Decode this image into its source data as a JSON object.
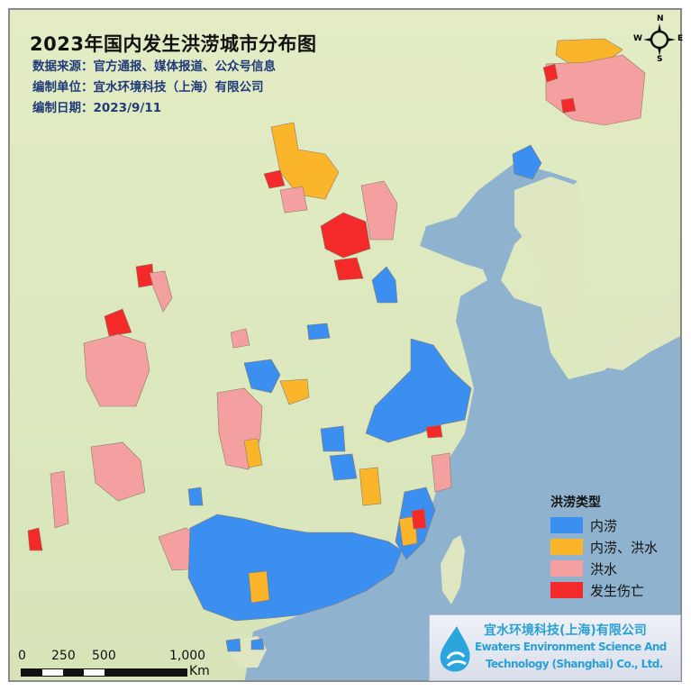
{
  "title": "2023年国内发生洪涝城市分布图",
  "info": {
    "source": "数据来源：官方通报、媒体报道、公众号信息",
    "unit": "编制单位：宜水环境科技（上海）有限公司",
    "date": "编制日期：2023/9/11"
  },
  "legend": {
    "title": "洪涝类型",
    "items": [
      {
        "label": "内涝",
        "color": "#3b8ff0"
      },
      {
        "label": "内涝、洪水",
        "color": "#fbb52b"
      },
      {
        "label": "洪水",
        "color": "#f5a0a0"
      },
      {
        "label": "发生伤亡",
        "color": "#f42a2a"
      }
    ]
  },
  "logo": {
    "cn": "宜水环境科技(上海)有限公司",
    "en1": "Ewaters Environment Science And",
    "en2": "Technology (Shanghai) Co., Ltd."
  },
  "scale": {
    "labels": [
      "0",
      "250",
      "500",
      "1,000"
    ],
    "unit": "Km"
  },
  "compass": {
    "n": "N",
    "s": "S",
    "e": "E",
    "w": "W"
  },
  "colors": {
    "land": "#dfe7c2",
    "sea": "#8fb3cf"
  }
}
